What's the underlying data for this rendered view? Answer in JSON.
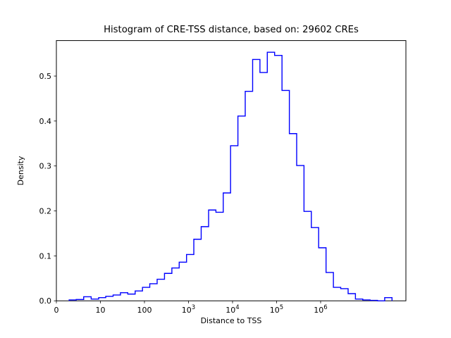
{
  "figure": {
    "title": "Histogram of CRE-TSS distance, based on: 29602 CREs",
    "xlabel": "Distance to TSS",
    "ylabel": "Density"
  },
  "chart_data": {
    "type": "bar",
    "subtype": "step-histogram",
    "title": "Histogram of CRE-TSS distance, based on: 29602 CREs",
    "xlabel": "Distance to TSS",
    "ylabel": "Density",
    "n_cres": 29602,
    "x_scale": "symlog",
    "linthresh": 10,
    "grid": "off",
    "legend": "none",
    "line_color": "#0000ff",
    "axis_color": "#000000",
    "background": "#ffffff",
    "ylim": [
      0.0,
      0.579
    ],
    "y_ticks": [
      "0.0",
      "0.1",
      "0.2",
      "0.3",
      "0.4",
      "0.5"
    ],
    "x_ticks": [
      {
        "value": 0,
        "label": "0"
      },
      {
        "value": 10,
        "label": "10"
      },
      {
        "value": 100,
        "label": "100"
      },
      {
        "value": 1000,
        "label": "10^3"
      },
      {
        "value": 10000,
        "label": "10^4"
      },
      {
        "value": 100000,
        "label": "10^5"
      },
      {
        "value": 1000000,
        "label": "10^6"
      }
    ],
    "bin_edges": [
      2.9,
      4.5,
      6.2,
      7.9,
      9.6,
      13.2,
      19.4,
      28.5,
      41.8,
      61.5,
      90.2,
      132,
      194,
      285,
      419,
      615,
      902,
      1320,
      1940,
      2860,
      4190,
      6150,
      9020,
      13240,
      19410,
      28580,
      41890,
      61520,
      90160,
      132700,
      195000,
      285800,
      418800,
      615100,
      901600,
      1327000,
      1950000,
      2858000,
      4207000,
      6167000,
      9057000,
      13270000,
      19545000,
      28466000,
      41772000
    ],
    "densities": [
      0.002,
      0.003,
      0.009,
      0.004,
      0.007,
      0.01,
      0.013,
      0.018,
      0.015,
      0.022,
      0.03,
      0.038,
      0.048,
      0.061,
      0.073,
      0.086,
      0.103,
      0.137,
      0.165,
      0.202,
      0.197,
      0.24,
      0.345,
      0.411,
      0.466,
      0.537,
      0.508,
      0.553,
      0.546,
      0.468,
      0.372,
      0.301,
      0.199,
      0.163,
      0.118,
      0.063,
      0.03,
      0.027,
      0.016,
      0.004,
      0.002,
      0.001,
      0.0,
      0.007
    ]
  }
}
